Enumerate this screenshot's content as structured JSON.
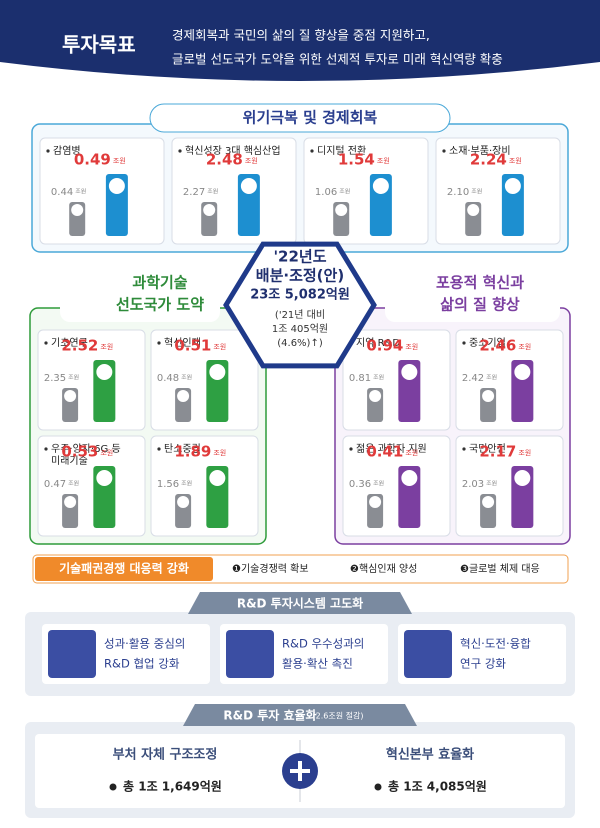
{
  "header": {
    "title": "투자목표",
    "lines": [
      "경제회복과 국민의 삶의 질 향상을 중점 지원하고,",
      "글로벌 선도국가 도약을 위한 선제적 투자로 미래 혁신역량 확충"
    ]
  },
  "unit": "조원",
  "recovery": {
    "title": "위기극복 및 경제회복",
    "items": [
      {
        "label": [
          "감염병"
        ],
        "prev": "0.44",
        "value": "0.49"
      },
      {
        "label": [
          "혁신성장 3대 핵심산업"
        ],
        "prev": "2.27",
        "value": "2.48"
      },
      {
        "label": [
          "디지털 전환"
        ],
        "prev": "1.06",
        "value": "1.54"
      },
      {
        "label": [
          "소재·부품·장비"
        ],
        "prev": "2.10",
        "value": "2.24"
      }
    ]
  },
  "center": {
    "lines": [
      "'22년도",
      "배분·조정(안)",
      "23조 5,082억원"
    ],
    "sub": [
      "('21년 대비",
      "1조 405억원",
      "(4.6%)↑)"
    ]
  },
  "science": {
    "title": [
      "과학기술",
      "선도국가 도약"
    ],
    "items": [
      {
        "label": [
          "기초연구"
        ],
        "prev": "2.35",
        "value": "2.52"
      },
      {
        "label": [
          "혁신인재"
        ],
        "prev": "0.48",
        "value": "0.51"
      },
      {
        "label": [
          "우주·양자·6G 등",
          "미래기술"
        ],
        "prev": "0.47",
        "value": "0.53"
      },
      {
        "label": [
          "탄소중립"
        ],
        "prev": "1.56",
        "value": "1.89"
      }
    ]
  },
  "inclusive": {
    "title": [
      "포용적 혁신과",
      "삶의 질 향상"
    ],
    "items": [
      {
        "label": [
          "지역 R&D"
        ],
        "prev": "0.81",
        "value": "0.94"
      },
      {
        "label": [
          "중소기업"
        ],
        "prev": "2.42",
        "value": "2.46"
      },
      {
        "label": [
          "젊은 과학자 지원"
        ],
        "prev": "0.36",
        "value": "0.41"
      },
      {
        "label": [
          "국민안전"
        ],
        "prev": "2.03",
        "value": "2.17"
      }
    ]
  },
  "tech": {
    "label": "기술패권경쟁 대응력 강화",
    "points": [
      "❶기술경쟁력 확보",
      "❷핵심인재 양성",
      "❸글로벌 체제 대응"
    ]
  },
  "system": {
    "title": "R&D 투자시스템 고도화",
    "items": [
      [
        "성과·활용 중심의",
        "R&D 협업 강화"
      ],
      [
        "R&D 우수성과의",
        "활용·확산 촉진"
      ],
      [
        "혁신·도전·융합",
        "연구 강화"
      ]
    ]
  },
  "efficiency": {
    "title": "R&D 투자 효율화",
    "note": "(2.6조원 절감)",
    "items": [
      {
        "name": "부처 자체 구조조정",
        "amount": "총 1조 1,649억원"
      },
      {
        "name": "혁신본부 효율화",
        "amount": "총 1조 4,085억원"
      }
    ]
  }
}
